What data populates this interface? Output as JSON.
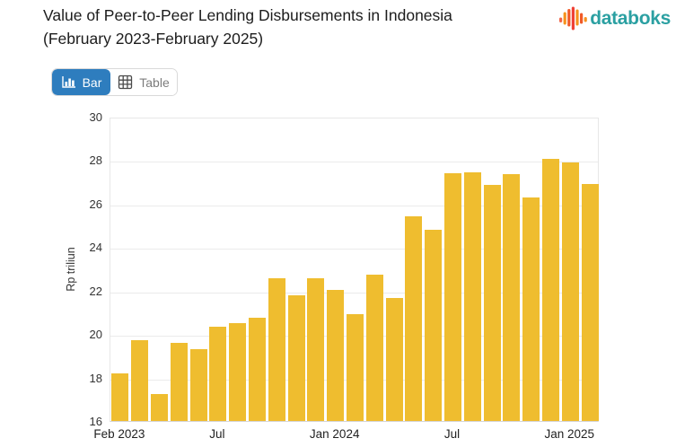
{
  "header": {
    "title_line1": "Value of Peer-to-Peer Lending Disbursements in Indonesia",
    "title_line2": "(February 2023-February 2025)",
    "brand": "databoks"
  },
  "toolbar": {
    "bar_label": "Bar",
    "table_label": "Table"
  },
  "icons": {
    "brand_logo": "databoks-bars-logo",
    "bar_button": "bar-chart-icon",
    "table_button": "table-grid-icon"
  },
  "colors": {
    "bar_fill": "#EFBD2F",
    "active_button_blue": "#2E7DBE",
    "brand_teal": "#2BA0A2",
    "brand_orange": "#F05A28",
    "brand_red": "#EF4136",
    "brand_amber": "#F6921E",
    "gridline": "#ebebeb",
    "axis_text": "#333333"
  },
  "chart_data": {
    "type": "bar",
    "title": "Value of Peer-to-Peer Lending Disbursements in Indonesia (February 2023-February 2025)",
    "xlabel": "",
    "ylabel": "Rp triliun",
    "ylim": [
      16,
      30
    ],
    "yticks": [
      16,
      18,
      20,
      22,
      24,
      26,
      28,
      30
    ],
    "grid": "horizontal",
    "legend": "none",
    "categories": [
      "Feb 2023",
      "Mar 2023",
      "Apr 2023",
      "May 2023",
      "Jun 2023",
      "Jul 2023",
      "Aug 2023",
      "Sep 2023",
      "Oct 2023",
      "Nov 2023",
      "Dec 2023",
      "Jan 2024",
      "Feb 2024",
      "Mar 2024",
      "Apr 2024",
      "May 2024",
      "Jun 2024",
      "Jul 2024",
      "Aug 2024",
      "Sep 2024",
      "Oct 2024",
      "Nov 2024",
      "Dec 2024",
      "Jan 2025",
      "Feb 2025"
    ],
    "values": [
      18.2,
      19.7,
      17.25,
      19.6,
      19.3,
      20.35,
      20.5,
      20.75,
      22.55,
      21.8,
      22.55,
      22.05,
      20.9,
      22.75,
      21.65,
      25.4,
      24.8,
      27.4,
      27.45,
      26.85,
      27.35,
      26.3,
      28.05,
      27.9,
      26.9
    ],
    "xticks_shown": [
      {
        "i": 0,
        "label": "Feb 2023"
      },
      {
        "i": 5,
        "label": "Jul"
      },
      {
        "i": 11,
        "label": "Jan 2024"
      },
      {
        "i": 17,
        "label": "Jul"
      },
      {
        "i": 23,
        "label": "Jan 2025"
      }
    ]
  }
}
